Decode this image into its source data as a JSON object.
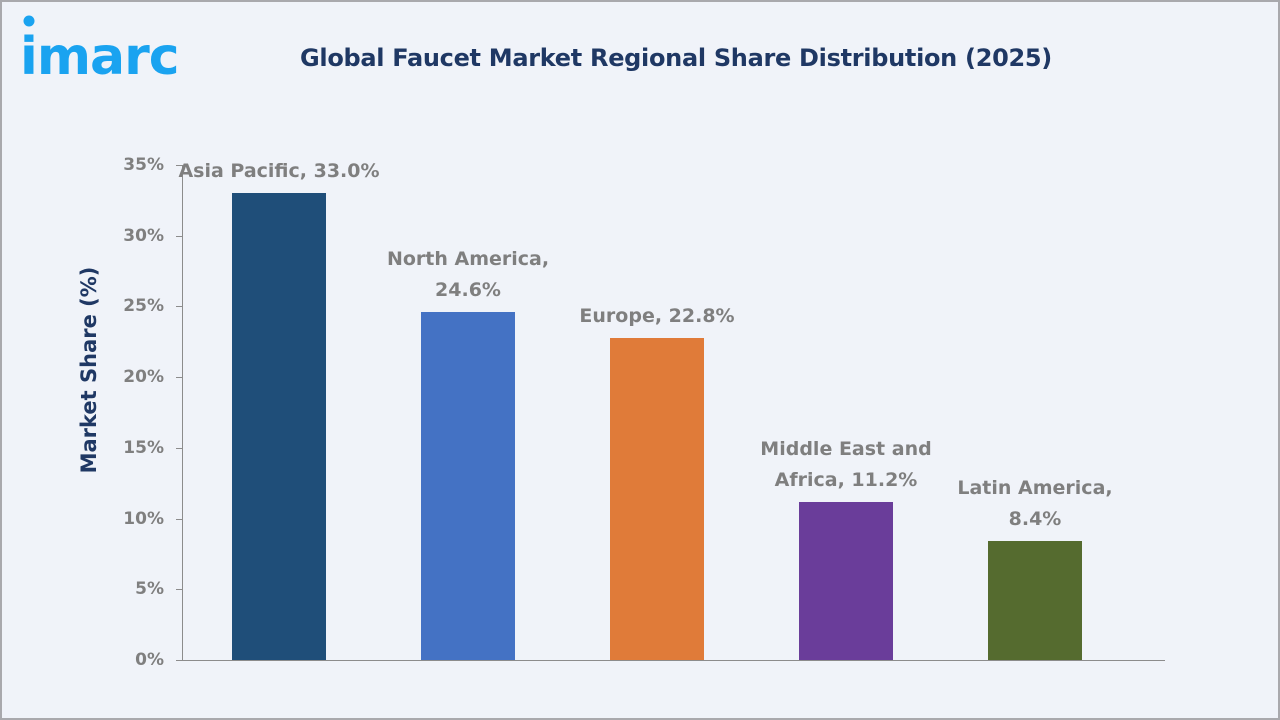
{
  "header": {
    "logo_text": "imarc",
    "title": "Global Faucet Market Regional Share Distribution (2025)"
  },
  "colors": {
    "background": "#f0f3f9",
    "title": "#1f3864",
    "logo": "#1aa3f0",
    "axis_text": "#7f7f7f"
  },
  "chart_data": {
    "type": "bar",
    "title": "Global Faucet Market Regional Share Distribution (2025)",
    "xlabel": "",
    "ylabel": "Market Share (%)",
    "ylim": [
      0,
      35
    ],
    "yticks": [
      "0%",
      "5%",
      "10%",
      "15%",
      "20%",
      "25%",
      "30%",
      "35%"
    ],
    "grid": false,
    "legend": "none",
    "categories": [
      "Asia Pacific",
      "North America",
      "Europe",
      "Middle East and Africa",
      "Latin America"
    ],
    "values": [
      33.0,
      24.6,
      22.8,
      11.2,
      8.4
    ],
    "bar_colors": [
      "#1f4e79",
      "#4472c4",
      "#e07b39",
      "#6a3d9a",
      "#556b2f"
    ],
    "data_labels": [
      [
        "Asia Pacific, 33.0%"
      ],
      [
        "North America,",
        "24.6%"
      ],
      [
        "Europe, 22.8%"
      ],
      [
        "Middle East and",
        "Africa, 11.2%"
      ],
      [
        "Latin America,",
        "8.4%"
      ]
    ]
  }
}
